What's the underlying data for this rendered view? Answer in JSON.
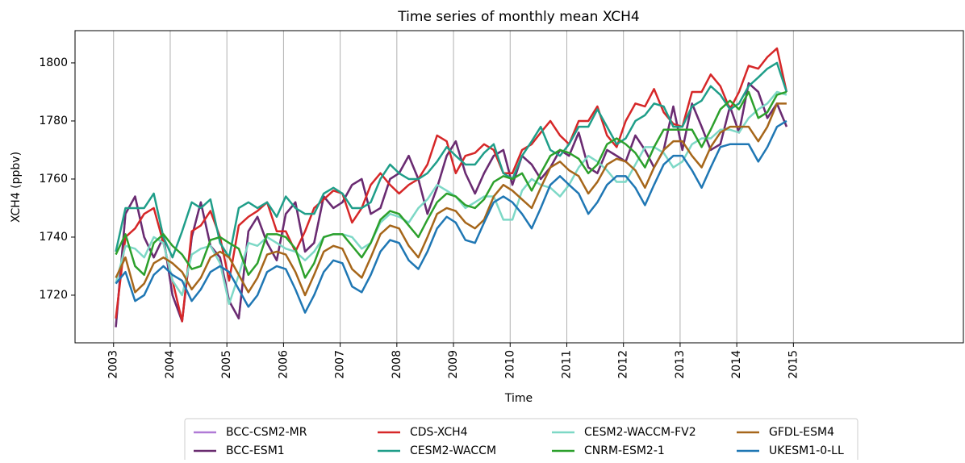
{
  "chart_data": {
    "type": "line",
    "title": "Time series of monthly mean XCH4",
    "x_label": "Time",
    "y_label": "XCH4 (ppbv)",
    "xlim": [
      2002.32,
      2018.0
    ],
    "ylim": [
      1703.6,
      1811.1
    ],
    "xticks": [
      2003,
      2004,
      2005,
      2006,
      2007,
      2008,
      2009,
      2010,
      2011,
      2012,
      2013,
      2014,
      2015
    ],
    "yticks": [
      1720,
      1740,
      1760,
      1780,
      1800
    ],
    "xgrid": true,
    "legend": "below",
    "x": [
      2003.04,
      2003.21,
      2003.38,
      2003.54,
      2003.71,
      2003.88,
      2004.04,
      2004.21,
      2004.38,
      2004.54,
      2004.71,
      2004.88,
      2005.04,
      2005.21,
      2005.38,
      2005.54,
      2005.71,
      2005.88,
      2006.04,
      2006.21,
      2006.38,
      2006.54,
      2006.71,
      2006.88,
      2007.04,
      2007.21,
      2007.38,
      2007.54,
      2007.71,
      2007.88,
      2008.04,
      2008.21,
      2008.38,
      2008.54,
      2008.71,
      2008.88,
      2009.04,
      2009.21,
      2009.38,
      2009.54,
      2009.71,
      2009.88,
      2010.04,
      2010.21,
      2010.38,
      2010.54,
      2010.71,
      2010.88,
      2011.04,
      2011.21,
      2011.38,
      2011.54,
      2011.71,
      2011.88,
      2012.04,
      2012.21,
      2012.38,
      2012.54,
      2012.71,
      2012.88,
      2013.04,
      2013.21,
      2013.38,
      2013.54,
      2013.71,
      2013.88,
      2014.04,
      2014.21,
      2014.38,
      2014.54,
      2014.71,
      2014.88
    ],
    "series": [
      {
        "name": "BCC-CSM2-MR",
        "color": "#b07ad6",
        "values": [
          1709,
          1748,
          1754,
          1740,
          1733,
          1740,
          1720,
          1711,
          1740,
          1752,
          1737,
          1733,
          1718,
          1712,
          1742,
          1747,
          1738,
          1732,
          1748,
          1752,
          1735,
          1738,
          1754,
          1750,
          1752,
          1758,
          1760,
          1748,
          1750,
          1760,
          1762,
          1768,
          1760,
          1748,
          1757,
          1768,
          1773,
          1762,
          1755,
          1762,
          1768,
          1770,
          1758,
          1768,
          1765,
          1760,
          1764,
          1770,
          1768,
          1776,
          1764,
          1762,
          1770,
          1768,
          1766,
          1775,
          1770,
          1764,
          1770,
          1785,
          1770,
          1786,
          1778,
          1770,
          1772,
          1785,
          1776,
          1793,
          1790,
          1781,
          1786,
          1778
        ]
      },
      {
        "name": "BCC-ESM1",
        "color": "#6a2c70",
        "values": [
          1709,
          1748,
          1754,
          1740,
          1733,
          1740,
          1720,
          1711,
          1740,
          1752,
          1737,
          1733,
          1718,
          1712,
          1742,
          1747,
          1738,
          1732,
          1748,
          1752,
          1735,
          1738,
          1754,
          1750,
          1752,
          1758,
          1760,
          1748,
          1750,
          1760,
          1762,
          1768,
          1760,
          1748,
          1757,
          1768,
          1773,
          1762,
          1755,
          1762,
          1768,
          1770,
          1758,
          1768,
          1765,
          1760,
          1764,
          1770,
          1768,
          1776,
          1764,
          1762,
          1770,
          1768,
          1766,
          1775,
          1770,
          1764,
          1770,
          1785,
          1770,
          1786,
          1778,
          1770,
          1772,
          1785,
          1776,
          1793,
          1790,
          1781,
          1786,
          1778
        ]
      },
      {
        "name": "CDS-XCH4",
        "color": "#d62728",
        "values": [
          1712,
          1740,
          1743,
          1748,
          1750,
          1738,
          1725,
          1711,
          1742,
          1744,
          1749,
          1740,
          1725,
          1744,
          1747,
          1749,
          1752,
          1742,
          1742,
          1735,
          1742,
          1750,
          1753,
          1756,
          1755,
          1745,
          1750,
          1758,
          1762,
          1758,
          1755,
          1758,
          1760,
          1765,
          1775,
          1773,
          1762,
          1768,
          1769,
          1772,
          1770,
          1762,
          1762,
          1770,
          1772,
          1776,
          1780,
          1775,
          1772,
          1780,
          1780,
          1785,
          1775,
          1771,
          1780,
          1786,
          1785,
          1791,
          1783,
          1779,
          1778,
          1790,
          1790,
          1796,
          1792,
          1784,
          1790,
          1799,
          1798,
          1802,
          1805,
          1790
        ]
      },
      {
        "name": "CESM2-WACCM",
        "color": "#1f9e89",
        "values": [
          1735,
          1750,
          1750,
          1750,
          1755,
          1740,
          1733,
          1742,
          1752,
          1750,
          1753,
          1738,
          1733,
          1750,
          1752,
          1750,
          1752,
          1747,
          1754,
          1750,
          1748,
          1748,
          1755,
          1757,
          1755,
          1750,
          1750,
          1752,
          1760,
          1765,
          1762,
          1760,
          1760,
          1762,
          1766,
          1771,
          1768,
          1765,
          1765,
          1769,
          1772,
          1762,
          1760,
          1768,
          1773,
          1778,
          1770,
          1768,
          1772,
          1778,
          1778,
          1784,
          1778,
          1772,
          1774,
          1780,
          1782,
          1786,
          1785,
          1778,
          1778,
          1785,
          1787,
          1792,
          1789,
          1784,
          1786,
          1792,
          1795,
          1798,
          1800,
          1790
        ]
      },
      {
        "name": "CESM2-WACCM-FV2",
        "color": "#7dd8c6",
        "values": [
          1724,
          1737,
          1736,
          1733,
          1740,
          1738,
          1725,
          1720,
          1734,
          1736,
          1737,
          1731,
          1717,
          1727,
          1738,
          1737,
          1740,
          1738,
          1736,
          1735,
          1732,
          1735,
          1740,
          1741,
          1741,
          1740,
          1736,
          1738,
          1745,
          1748,
          1747,
          1745,
          1750,
          1753,
          1758,
          1756,
          1754,
          1750,
          1752,
          1754,
          1754,
          1746,
          1746,
          1756,
          1760,
          1758,
          1757,
          1754,
          1758,
          1764,
          1768,
          1766,
          1763,
          1759,
          1759,
          1765,
          1771,
          1771,
          1769,
          1764,
          1766,
          1772,
          1774,
          1774,
          1777,
          1777,
          1776,
          1781,
          1784,
          1786,
          1790,
          1789
        ]
      },
      {
        "name": "CNRM-ESM2-1",
        "color": "#2ca02c",
        "values": [
          1734,
          1741,
          1730,
          1727,
          1738,
          1741,
          1737,
          1734,
          1729,
          1730,
          1739,
          1740,
          1738,
          1736,
          1727,
          1731,
          1741,
          1741,
          1740,
          1736,
          1726,
          1731,
          1740,
          1741,
          1741,
          1737,
          1733,
          1738,
          1746,
          1749,
          1748,
          1744,
          1740,
          1746,
          1752,
          1755,
          1754,
          1751,
          1750,
          1753,
          1759,
          1761,
          1760,
          1762,
          1756,
          1762,
          1768,
          1770,
          1769,
          1767,
          1762,
          1765,
          1772,
          1774,
          1772,
          1769,
          1764,
          1771,
          1777,
          1777,
          1777,
          1777,
          1771,
          1777,
          1784,
          1787,
          1784,
          1790,
          1781,
          1783,
          1789,
          1790
        ]
      },
      {
        "name": "GFDL-ESM4",
        "color": "#a6661a",
        "values": [
          1726,
          1733,
          1721,
          1724,
          1731,
          1733,
          1731,
          1728,
          1722,
          1726,
          1733,
          1735,
          1733,
          1727,
          1721,
          1726,
          1734,
          1735,
          1734,
          1728,
          1720,
          1727,
          1735,
          1737,
          1736,
          1729,
          1726,
          1733,
          1741,
          1744,
          1743,
          1737,
          1733,
          1740,
          1748,
          1750,
          1749,
          1745,
          1743,
          1746,
          1754,
          1758,
          1756,
          1753,
          1750,
          1757,
          1764,
          1766,
          1763,
          1761,
          1755,
          1759,
          1765,
          1767,
          1766,
          1763,
          1757,
          1764,
          1770,
          1773,
          1773,
          1768,
          1764,
          1771,
          1776,
          1778,
          1778,
          1778,
          1773,
          1778,
          1786,
          1786
        ]
      },
      {
        "name": "UKESM1-0-LL",
        "color": "#1f77b4",
        "values": [
          1724,
          1728,
          1718,
          1720,
          1727,
          1730,
          1727,
          1725,
          1718,
          1722,
          1728,
          1730,
          1728,
          1722,
          1716,
          1720,
          1728,
          1730,
          1729,
          1722,
          1714,
          1720,
          1728,
          1732,
          1731,
          1723,
          1721,
          1727,
          1735,
          1739,
          1738,
          1732,
          1729,
          1735,
          1743,
          1747,
          1745,
          1739,
          1738,
          1745,
          1752,
          1754,
          1752,
          1748,
          1743,
          1750,
          1758,
          1761,
          1758,
          1755,
          1748,
          1752,
          1758,
          1761,
          1761,
          1757,
          1751,
          1758,
          1765,
          1768,
          1768,
          1763,
          1757,
          1764,
          1771,
          1772,
          1772,
          1772,
          1766,
          1771,
          1778,
          1780
        ]
      }
    ]
  }
}
